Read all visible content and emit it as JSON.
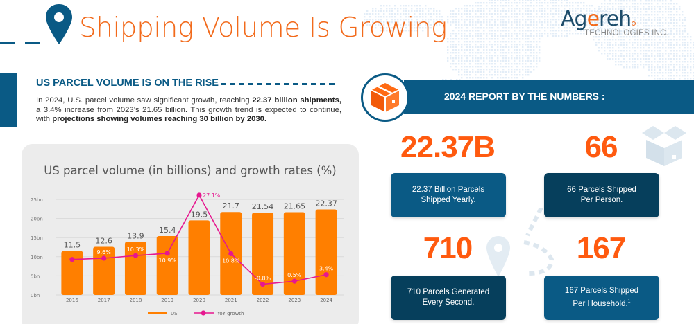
{
  "header": {
    "title": "Shipping Volume Is Growing",
    "logo_main_pre": "Ag",
    "logo_main_e": "e",
    "logo_main_post": "reh",
    "logo_sub": "TECHNOLOGIES INC."
  },
  "intro": {
    "heading": "US PARCEL VOLUME IS ON THE RISE",
    "p1": "In 2024, U.S. parcel volume saw significant growth, reaching ",
    "b1": "22.37 billion shipments,",
    "p2": " a 3.4% increase from 2023’s 21.65 billion. This growth trend is expected to continue, with ",
    "b2": "projections showing volumes reaching 30 billion by 2030."
  },
  "report": {
    "banner": "2024 REPORT BY THE NUMBERS :",
    "stats": [
      {
        "number": "22.37B",
        "line1": "22.37 Billion Parcels",
        "line2": "Shipped Yearly.",
        "footnote": ""
      },
      {
        "number": "66",
        "line1": "66 Parcels Shipped",
        "line2": "Per Person.",
        "footnote": ""
      },
      {
        "number": "710",
        "line1": "710 Parcels Generated",
        "line2": "Every Second.",
        "footnote": ""
      },
      {
        "number": "167",
        "line1": "167 Parcels Shipped",
        "line2": "Per Household.",
        "footnote": "1"
      }
    ]
  },
  "colors": {
    "brand_blue": "#0a5a85",
    "dark_blue": "#063f5c",
    "accent_orange": "#f26a1b",
    "bar_orange": "#ff7f00",
    "line_magenta": "#e6178f"
  },
  "chart_data": {
    "type": "bar",
    "title": "US parcel volume (in billions) and growth rates (%)",
    "xlabel": "",
    "ylabel": "",
    "ylim": [
      0,
      25
    ],
    "yticks": [
      "0bn",
      "5bn",
      "10bn",
      "15bn",
      "20bn",
      "25bn"
    ],
    "grid": true,
    "legend_position": "bottom",
    "categories": [
      "2016",
      "2017",
      "2018",
      "2019",
      "2020",
      "2021",
      "2022",
      "2023",
      "2024"
    ],
    "series": [
      {
        "name": "US",
        "type": "bar",
        "values": [
          11.5,
          12.6,
          13.9,
          15.4,
          19.5,
          21.7,
          21.54,
          21.65,
          22.37
        ],
        "labels": [
          "11.5",
          "12.6",
          "13.9",
          "15.4",
          "19.5",
          "21.7",
          "21.54",
          "21.65",
          "22.37"
        ]
      },
      {
        "name": "YoY growth",
        "type": "line",
        "values": [
          null,
          9.6,
          10.3,
          10.9,
          27.1,
          10.8,
          -0.8,
          0.5,
          3.4
        ],
        "plotted_at_bn": [
          9.3,
          9.6,
          10.3,
          10.9,
          26.1,
          10.8,
          2.8,
          3.6,
          5.3
        ],
        "labels": [
          "",
          "9.6%",
          "10.3%",
          "10.9%",
          "27.1%",
          "10.8%",
          "-0.8%",
          "0.5%",
          "3.4%"
        ]
      }
    ]
  }
}
